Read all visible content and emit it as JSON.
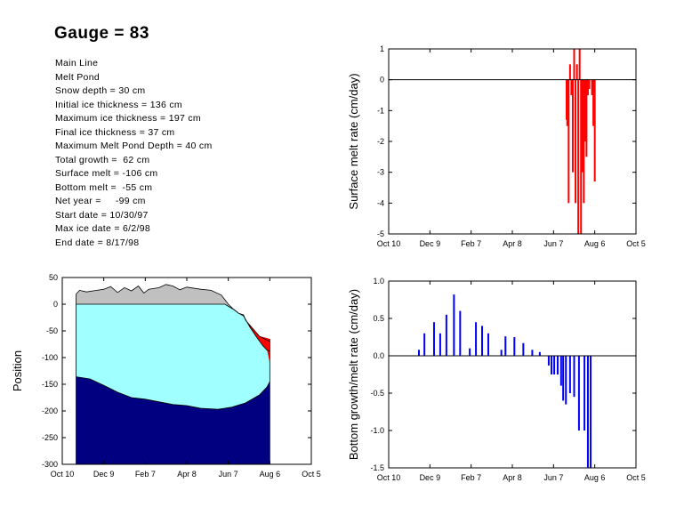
{
  "title": "Gauge = 83",
  "info_lines": [
    "Main Line",
    "Melt Pond",
    "Snow depth = 30 cm",
    "Initial ice thickness = 136 cm",
    "Maximum ice thickness = 197 cm",
    "Final ice thickness = 37 cm",
    "Maximum Melt Pond Depth = 40 cm",
    "Total growth =  62 cm",
    "Surface melt = -106 cm",
    "Bottom melt =  -55 cm",
    "Net year =     -99 cm",
    "Start date = 10/30/97",
    "Max ice date = 6/2/98",
    "End date = 8/17/98"
  ],
  "colors": {
    "snow": "#c0c0c0",
    "ice": "#a0ffff",
    "water": "#000080",
    "pond": "#ff0000",
    "surface_bars": "#ff0000",
    "bottom_bars": "#0000ff"
  },
  "chart_data": [
    {
      "id": "position",
      "type": "area",
      "ylabel": "Position",
      "xlabel": "",
      "x_ticks": [
        "Oct 10",
        "Dec 9",
        "Feb 7",
        "Apr 8",
        "Jun 7",
        "Aug 6",
        "Oct 5"
      ],
      "x_range_days": [
        0,
        360
      ],
      "ylim": [
        -300,
        50
      ],
      "y_ticks": [
        50,
        0,
        -50,
        -100,
        -150,
        -200,
        -250,
        -300
      ],
      "snow_top": [
        [
          20,
          19
        ],
        [
          25,
          26
        ],
        [
          35,
          23
        ],
        [
          50,
          26
        ],
        [
          60,
          28
        ],
        [
          70,
          33
        ],
        [
          80,
          22
        ],
        [
          90,
          31
        ],
        [
          100,
          25
        ],
        [
          110,
          34
        ],
        [
          118,
          21
        ],
        [
          125,
          28
        ],
        [
          140,
          31
        ],
        [
          150,
          37
        ],
        [
          160,
          34
        ],
        [
          170,
          27
        ],
        [
          180,
          32
        ],
        [
          200,
          28
        ],
        [
          215,
          26
        ],
        [
          230,
          17
        ],
        [
          240,
          0
        ],
        [
          248,
          -10
        ],
        [
          255,
          -17
        ],
        [
          262,
          -20
        ],
        [
          265,
          -30
        ],
        [
          275,
          -45
        ],
        [
          285,
          -60
        ],
        [
          300,
          -70
        ]
      ],
      "ice_top": [
        [
          20,
          0
        ],
        [
          235,
          0
        ],
        [
          248,
          -10
        ],
        [
          255,
          -17
        ],
        [
          262,
          -22
        ],
        [
          270,
          -40
        ],
        [
          280,
          -60
        ],
        [
          290,
          -78
        ],
        [
          296,
          -86
        ],
        [
          300,
          -88
        ]
      ],
      "ice_bottom": [
        [
          20,
          -136
        ],
        [
          40,
          -140
        ],
        [
          60,
          -152
        ],
        [
          80,
          -165
        ],
        [
          100,
          -175
        ],
        [
          120,
          -178
        ],
        [
          140,
          -183
        ],
        [
          160,
          -188
        ],
        [
          180,
          -190
        ],
        [
          200,
          -195
        ],
        [
          225,
          -197
        ],
        [
          245,
          -193
        ],
        [
          265,
          -185
        ],
        [
          285,
          -170
        ],
        [
          296,
          -155
        ],
        [
          300,
          -145
        ]
      ],
      "pond_top": [
        [
          270,
          -38
        ],
        [
          285,
          -60
        ],
        [
          292,
          -62
        ],
        [
          300,
          -65
        ]
      ],
      "pond_bottom": [
        [
          270,
          -42
        ],
        [
          280,
          -60
        ],
        [
          290,
          -78
        ],
        [
          296,
          -86
        ],
        [
          300,
          -110
        ]
      ]
    },
    {
      "id": "surface_melt",
      "type": "bar",
      "ylabel": "Surface melt rate (cm/day)",
      "xlabel": "",
      "x_ticks": [
        "Oct 10",
        "Dec 9",
        "Feb 7",
        "Apr 8",
        "Jun 7",
        "Aug 6",
        "Oct 5"
      ],
      "x_range_days": [
        0,
        360
      ],
      "ylim": [
        -5,
        1
      ],
      "y_ticks": [
        1,
        0,
        -1,
        -2,
        -3,
        -4,
        -5
      ],
      "bars": [
        [
          259,
          -1.3
        ],
        [
          260,
          -1.5
        ],
        [
          262,
          -4
        ],
        [
          264,
          0.5
        ],
        [
          266,
          -0.5
        ],
        [
          268,
          -3
        ],
        [
          270,
          1
        ],
        [
          272,
          -4
        ],
        [
          274,
          0.5
        ],
        [
          276,
          -5
        ],
        [
          278,
          1
        ],
        [
          280,
          -5
        ],
        [
          282,
          -3
        ],
        [
          284,
          -4
        ],
        [
          286,
          -2
        ],
        [
          288,
          -2.5
        ],
        [
          290,
          -0.5
        ],
        [
          292,
          -0.3
        ],
        [
          296,
          -0.5
        ],
        [
          298,
          -1.5
        ],
        [
          300,
          -3.3
        ]
      ]
    },
    {
      "id": "bottom_melt",
      "type": "bar",
      "ylabel": "Bottom growth/melt rate (cm/day)",
      "xlabel": "",
      "x_ticks": [
        "Oct 10",
        "Dec 9",
        "Feb 7",
        "Apr 8",
        "Jun 7",
        "Aug 6",
        "Oct 5"
      ],
      "x_range_days": [
        0,
        360
      ],
      "ylim": [
        -1.5,
        1
      ],
      "y_ticks": [
        1.0,
        0.5,
        0.0,
        -0.5,
        -1.0,
        -1.5
      ],
      "bars": [
        [
          44,
          0.08
        ],
        [
          52,
          0.3
        ],
        [
          66,
          0.45
        ],
        [
          75,
          0.3
        ],
        [
          84,
          0.55
        ],
        [
          95,
          0.82
        ],
        [
          104,
          0.6
        ],
        [
          118,
          0.1
        ],
        [
          127,
          0.45
        ],
        [
          136,
          0.4
        ],
        [
          145,
          0.3
        ],
        [
          164,
          0.08
        ],
        [
          170,
          0.26
        ],
        [
          183,
          0.25
        ],
        [
          196,
          0.17
        ],
        [
          209,
          0.08
        ],
        [
          220,
          0.05
        ],
        [
          233,
          -0.13
        ],
        [
          237,
          -0.25
        ],
        [
          241,
          -0.25
        ],
        [
          246,
          -0.25
        ],
        [
          251,
          -0.4
        ],
        [
          254,
          -0.6
        ],
        [
          258,
          -0.65
        ],
        [
          264,
          -0.5
        ],
        [
          270,
          -0.55
        ],
        [
          277,
          -1.0
        ],
        [
          285,
          -1.0
        ],
        [
          290,
          -1.5
        ],
        [
          294,
          -1.5
        ]
      ]
    }
  ]
}
